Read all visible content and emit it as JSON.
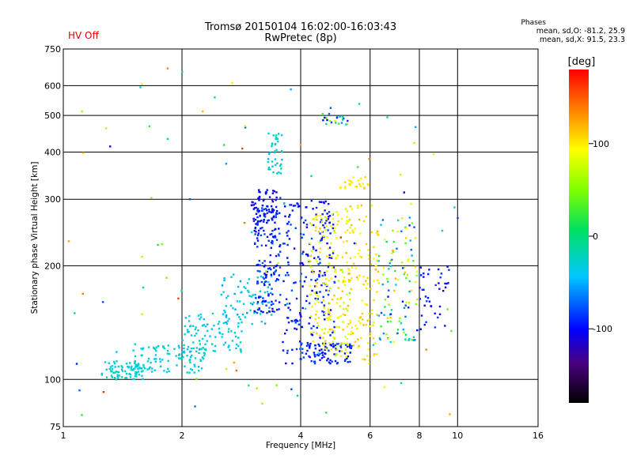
{
  "header": {
    "title": "Tromsø 20150104 16:02:00-16:03:43",
    "subtitle": "RwPretec (8p)",
    "status": "HV Off",
    "status_color": "#dd0000",
    "phases": {
      "title": "Phases",
      "o_line": "mean, sd,O: -81.2, 25.9",
      "x_line": "mean, sd,X:  91.5, 23.3"
    }
  },
  "chart_data": {
    "type": "scatter",
    "xlabel": "Frequency [MHz]",
    "ylabel": "Stationary phase Virtual Height [km]",
    "xscale": "log",
    "yscale": "log",
    "xlim": [
      1,
      16
    ],
    "ylim": [
      75,
      750
    ],
    "x_ticks": [
      1,
      2,
      4,
      6,
      8,
      10,
      16
    ],
    "y_ticks": [
      75,
      100,
      200,
      300,
      400,
      500,
      600,
      750
    ],
    "grid": true,
    "colorbar": {
      "label": "[deg]",
      "range": [
        -180,
        180
      ],
      "ticks": [
        100,
        0,
        -100
      ],
      "colormap": "rainbow"
    },
    "clusters": [
      {
        "x": [
          1.25,
          1.6
        ],
        "y": [
          100,
          112
        ],
        "phase": [
          -40,
          -20
        ],
        "n": 80
      },
      {
        "x": [
          1.5,
          2.3
        ],
        "y": [
          104,
          125
        ],
        "phase": [
          -45,
          -15
        ],
        "n": 110
      },
      {
        "x": [
          2.0,
          2.9
        ],
        "y": [
          118,
          150
        ],
        "phase": [
          -50,
          -20
        ],
        "n": 90
      },
      {
        "x": [
          2.5,
          3.4
        ],
        "y": [
          140,
          190
        ],
        "phase": [
          -60,
          -20
        ],
        "n": 70
      },
      {
        "x": [
          3.0,
          3.5
        ],
        "y": [
          260,
          320
        ],
        "phase": [
          -120,
          -85
        ],
        "n": 60
      },
      {
        "x": [
          3.05,
          3.55
        ],
        "y": [
          150,
          290
        ],
        "phase": [
          -105,
          -75
        ],
        "n": 160
      },
      {
        "x": [
          3.3,
          3.6
        ],
        "y": [
          350,
          450
        ],
        "phase": [
          -50,
          -10
        ],
        "n": 40
      },
      {
        "x": [
          3.6,
          4.9
        ],
        "y": [
          110,
          300
        ],
        "phase": [
          -110,
          -75
        ],
        "n": 240
      },
      {
        "x": [
          4.0,
          5.4
        ],
        "y": [
          110,
          125
        ],
        "phase": [
          -100,
          -80
        ],
        "n": 70
      },
      {
        "x": [
          4.2,
          5.4
        ],
        "y": [
          115,
          280
        ],
        "phase": [
          70,
          115
        ],
        "n": 180
      },
      {
        "x": [
          5.1,
          6.3
        ],
        "y": [
          110,
          290
        ],
        "phase": [
          80,
          120
        ],
        "n": 130
      },
      {
        "x": [
          5.0,
          6.0
        ],
        "y": [
          320,
          345
        ],
        "phase": [
          95,
          110
        ],
        "n": 25
      },
      {
        "x": [
          4.5,
          5.3
        ],
        "y": [
          470,
          510
        ],
        "phase": [
          -110,
          150
        ],
        "n": 25
      },
      {
        "x": [
          6.3,
          7.9
        ],
        "y": [
          125,
          270
        ],
        "phase": [
          -100,
          120
        ],
        "n": 110
      },
      {
        "x": [
          8.0,
          9.5
        ],
        "y": [
          135,
          200
        ],
        "phase": [
          -110,
          -80
        ],
        "n": 40
      },
      {
        "x": [
          1.03,
          10.8
        ],
        "y": [
          80,
          690
        ],
        "phase": [
          -110,
          170
        ],
        "n": 90
      }
    ]
  }
}
